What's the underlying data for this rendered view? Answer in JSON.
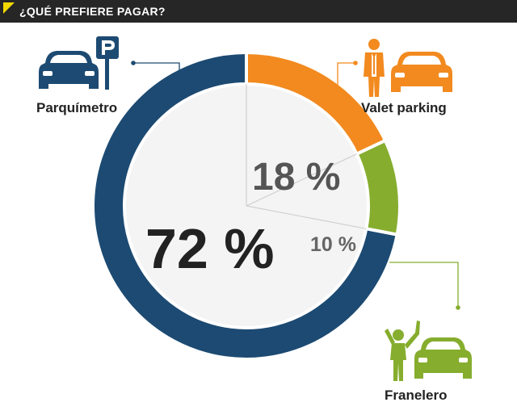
{
  "header": {
    "title": "¿QUÉ PREFIERE PAGAR?"
  },
  "colors": {
    "parquimetro": "#1c4a72",
    "valet": "#f28a1f",
    "franelero": "#86ad2e",
    "inner": "#f4f4f4",
    "text_dark": "#222222",
    "text_grey": "#555555"
  },
  "icons": {
    "parquimetro": [
      "car-icon",
      "parking-sign-icon"
    ],
    "valet": [
      "valet-person-icon",
      "car-icon"
    ],
    "franelero": [
      "waving-person-icon",
      "car-icon"
    ]
  },
  "chart_data": {
    "type": "pie",
    "title": "¿QUÉ PREFIERE PAGAR?",
    "categories": [
      "Parquímetro",
      "Valet parking",
      "Franelero"
    ],
    "values": [
      72,
      18,
      10
    ],
    "value_labels": [
      "72 %",
      "18 %",
      "10 %"
    ]
  }
}
